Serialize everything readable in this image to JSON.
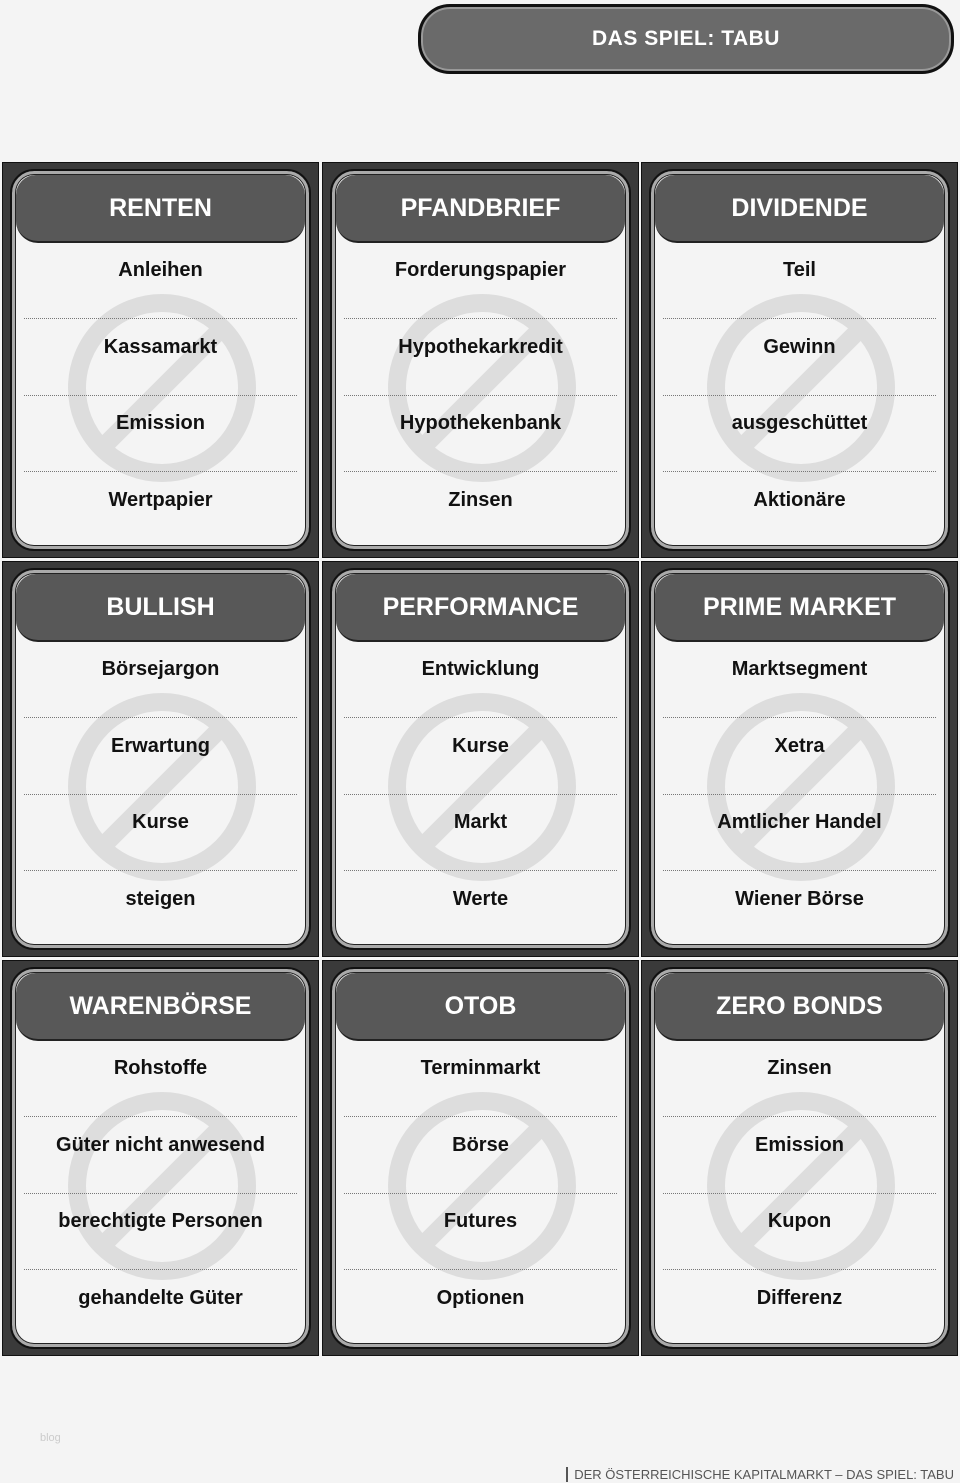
{
  "title": "DAS SPIEL: TABU",
  "cards": [
    {
      "term": "RENTEN",
      "taboo": [
        "Anleihen",
        "Kassamarkt",
        "Emission",
        "Wertpapier"
      ]
    },
    {
      "term": "PFANDBRIEF",
      "taboo": [
        "Forderungspapier",
        "Hypothekarkredit",
        "Hypothekenbank",
        "Zinsen"
      ]
    },
    {
      "term": "DIVIDENDE",
      "taboo": [
        "Teil",
        "Gewinn",
        "ausgeschüttet",
        "Aktionäre"
      ]
    },
    {
      "term": "BULLISH",
      "taboo": [
        "Börsejargon",
        "Erwartung",
        "Kurse",
        "steigen"
      ]
    },
    {
      "term": "PERFORMANCE",
      "taboo": [
        "Entwicklung",
        "Kurse",
        "Markt",
        "Werte"
      ]
    },
    {
      "term": "PRIME MARKET",
      "taboo": [
        "Marktsegment",
        "Xetra",
        "Amtlicher Handel",
        "Wiener Börse"
      ]
    },
    {
      "term": "WARENBÖRSE",
      "taboo": [
        "Rohstoffe",
        "Güter nicht anwesend",
        "berechtigte Personen",
        "gehandelte Güter"
      ]
    },
    {
      "term": "OTOB",
      "taboo": [
        "Terminmarkt",
        "Börse",
        "Futures",
        "Optionen"
      ]
    },
    {
      "term": "ZERO BONDS",
      "taboo": [
        "Zinsen",
        "Emission",
        "Kupon",
        "Differenz"
      ]
    }
  ],
  "watermark": "blog",
  "footer": "DER ÖSTERREICHISCHE KAPITALMARKT – DAS SPIEL: TABU",
  "icons": {
    "background": "prohibition-icon"
  },
  "colors": {
    "cell": "#3a3a3a",
    "header": "#585858",
    "card": "#f4f4f4",
    "icon": "#dddddd"
  }
}
